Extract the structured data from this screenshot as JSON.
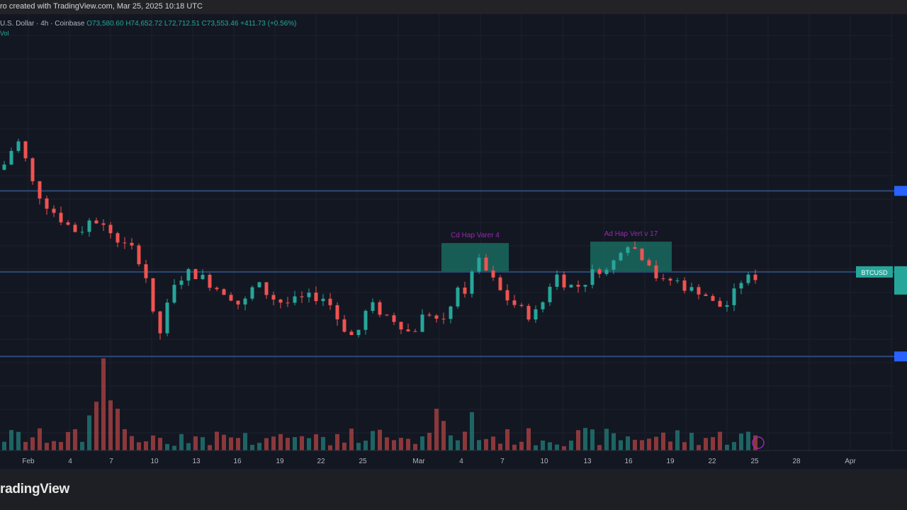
{
  "header": {
    "caption": "ro created with TradingView.com, Mar 25, 2025 10:18 UTC"
  },
  "legend": {
    "symbol": "U.S. Dollar · 4h · Coinbase",
    "open": "O73,580.60",
    "high": "H74,652.72",
    "low": "L72,712.51",
    "close": "C73,553.46",
    "change": "+411.73 (+0.56%)",
    "volume_label": "Vol"
  },
  "brand": "radingView",
  "colors": {
    "up": "#26a69a",
    "down": "#ef5350",
    "level_line": "#2a3f66",
    "box_fill": "#1b7a6c",
    "annotation": "#9c27b0",
    "price_tag": "#26a69a",
    "level_tag": "#2962ff"
  },
  "icons": [
    "events-flag-icon"
  ],
  "chart_data": {
    "type": "candlestick",
    "x_tick_labels": [
      "Feb",
      "4",
      "7",
      "10",
      "13",
      "16",
      "19",
      "22",
      "25",
      "Mar",
      "4",
      "7",
      "10",
      "13",
      "16",
      "19",
      "22",
      "25",
      "28",
      "Apr"
    ],
    "anchors": [
      [
        0,
        81000
      ],
      [
        1,
        82500
      ],
      [
        2,
        85000
      ],
      [
        3,
        84800
      ],
      [
        4,
        80000
      ],
      [
        6,
        76500
      ],
      [
        9,
        73500
      ],
      [
        11,
        72000
      ],
      [
        13,
        74200
      ],
      [
        15,
        72500
      ],
      [
        17,
        70500
      ],
      [
        19,
        69500
      ],
      [
        21,
        64500
      ],
      [
        22,
        56000
      ],
      [
        24,
        63500
      ],
      [
        26,
        66500
      ],
      [
        28,
        66000
      ],
      [
        30,
        64500
      ],
      [
        32,
        63500
      ],
      [
        34,
        61500
      ],
      [
        36,
        65000
      ],
      [
        38,
        63000
      ],
      [
        40,
        62000
      ],
      [
        42,
        62500
      ],
      [
        44,
        63000
      ],
      [
        46,
        62800
      ],
      [
        48,
        59000
      ],
      [
        50,
        57000
      ],
      [
        52,
        62000
      ],
      [
        54,
        60500
      ],
      [
        56,
        59500
      ],
      [
        58,
        57500
      ],
      [
        60,
        61000
      ],
      [
        62,
        59500
      ],
      [
        63,
        60500
      ],
      [
        64,
        63500
      ],
      [
        66,
        64000
      ],
      [
        67,
        68500
      ],
      [
        69,
        66000
      ],
      [
        71,
        63000
      ],
      [
        73,
        61500
      ],
      [
        75,
        60000
      ],
      [
        77,
        63000
      ],
      [
        78,
        66500
      ],
      [
        80,
        64500
      ],
      [
        82,
        64500
      ],
      [
        84,
        67000
      ],
      [
        86,
        66500
      ],
      [
        87,
        69500
      ],
      [
        89,
        71000
      ],
      [
        90,
        68500
      ],
      [
        91,
        69000
      ],
      [
        93,
        64800
      ],
      [
        95,
        65500
      ],
      [
        97,
        64000
      ],
      [
        99,
        63800
      ],
      [
        101,
        61500
      ],
      [
        103,
        62000
      ],
      [
        104,
        65000
      ],
      [
        106,
        65800
      ]
    ],
    "candles_count": 107,
    "volume_unit": "relative",
    "horizontal_levels": [
      78000,
      66500,
      54500
    ],
    "zones": [
      {
        "label": "Cd Hap Varer 4",
        "x_start": 62,
        "x_end": 71.5,
        "y_low": 66500,
        "y_high": 70600
      },
      {
        "label": "Ad Hap Vert v 17",
        "x_start": 83,
        "x_end": 94.5,
        "y_low": 66500,
        "y_high": 70800
      }
    ],
    "current_price_label": "BTCUSD",
    "y_axis": {
      "min": 50000,
      "max": 88000,
      "tick_labels_visible": false
    },
    "grid": true,
    "legend_placement": "top-left"
  }
}
